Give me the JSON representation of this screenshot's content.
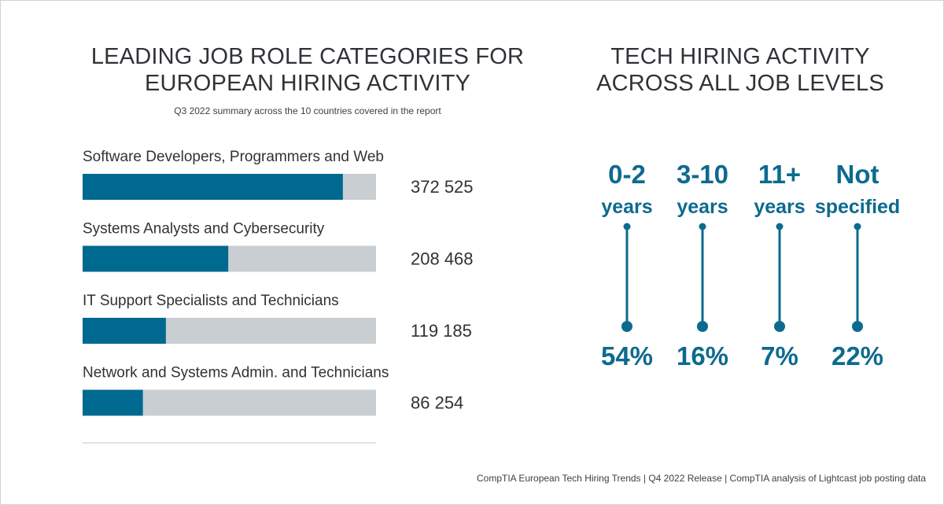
{
  "footer": "CompTIA European Tech Hiring Trends | Q4 2022 Release | CompTIA analysis of Lightcast job posting data",
  "colors": {
    "bar": "#00698f",
    "track": "#c9ced2",
    "accent": "#0d6a8e",
    "text": "#2f3237"
  },
  "chart_data": [
    {
      "type": "bar",
      "orientation": "horizontal",
      "title": "LEADING JOB ROLE CATEGORIES FOR EUROPEAN HIRING ACTIVITY",
      "subtitle": "Q3 2022 summary across the 10 countries covered in the report",
      "categories": [
        "Software Developers, Programmers and Web",
        "Systems Analysts and Cybersecurity",
        "IT Support Specialists and Technicians",
        "Network and Systems Admin. and Technicians"
      ],
      "values": [
        372525,
        208468,
        119185,
        86254
      ],
      "value_labels": [
        "372 525",
        "208 468",
        "119 185",
        "86 254"
      ],
      "xlim": [
        0,
        420000
      ]
    },
    {
      "type": "table",
      "title": "TECH HIRING ACTIVITY ACROSS ALL JOB LEVELS",
      "categories": [
        [
          "0-2",
          "years"
        ],
        [
          "3-10",
          "years"
        ],
        [
          "11+",
          "years"
        ],
        [
          "Not",
          "specified"
        ]
      ],
      "values": [
        54,
        16,
        7,
        22
      ],
      "value_labels": [
        "54%",
        "16%",
        "7%",
        "22%"
      ]
    }
  ]
}
